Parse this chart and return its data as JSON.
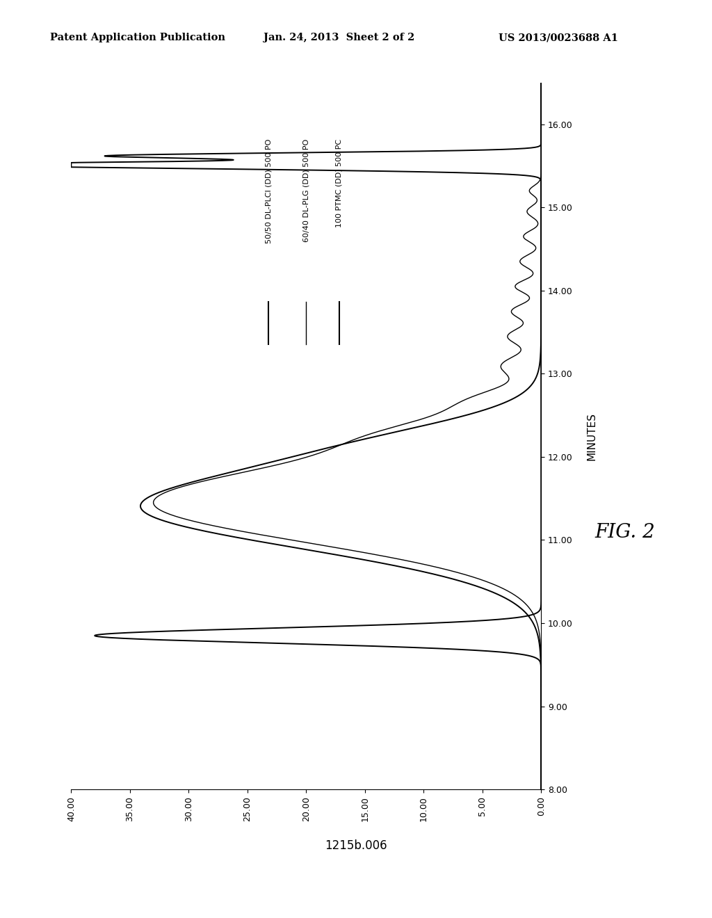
{
  "title": "FIG. 2",
  "xlabel_rotated": "MINUTES",
  "xlim_signal": [
    40.0,
    0.0
  ],
  "ylim_time": [
    8.0,
    16.5
  ],
  "xticks_signal": [
    40.0,
    35.0,
    30.0,
    25.0,
    20.0,
    15.0,
    10.0,
    5.0,
    0.0
  ],
  "yticks_time": [
    8.0,
    9.0,
    10.0,
    11.0,
    12.0,
    13.0,
    14.0,
    15.0,
    16.0
  ],
  "legend": [
    "50/50 DL-PLCl (DD) 500 PO",
    "60/40 DL-PLG (DD) 500 PO",
    "100 PTMC (DD) 500 PC"
  ],
  "background_color": "#ffffff",
  "header_left": "Patent Application Publication",
  "header_center": "Jan. 24, 2013  Sheet 2 of 2",
  "header_right": "US 2013/0023688 A1",
  "footer": "1215b.006"
}
